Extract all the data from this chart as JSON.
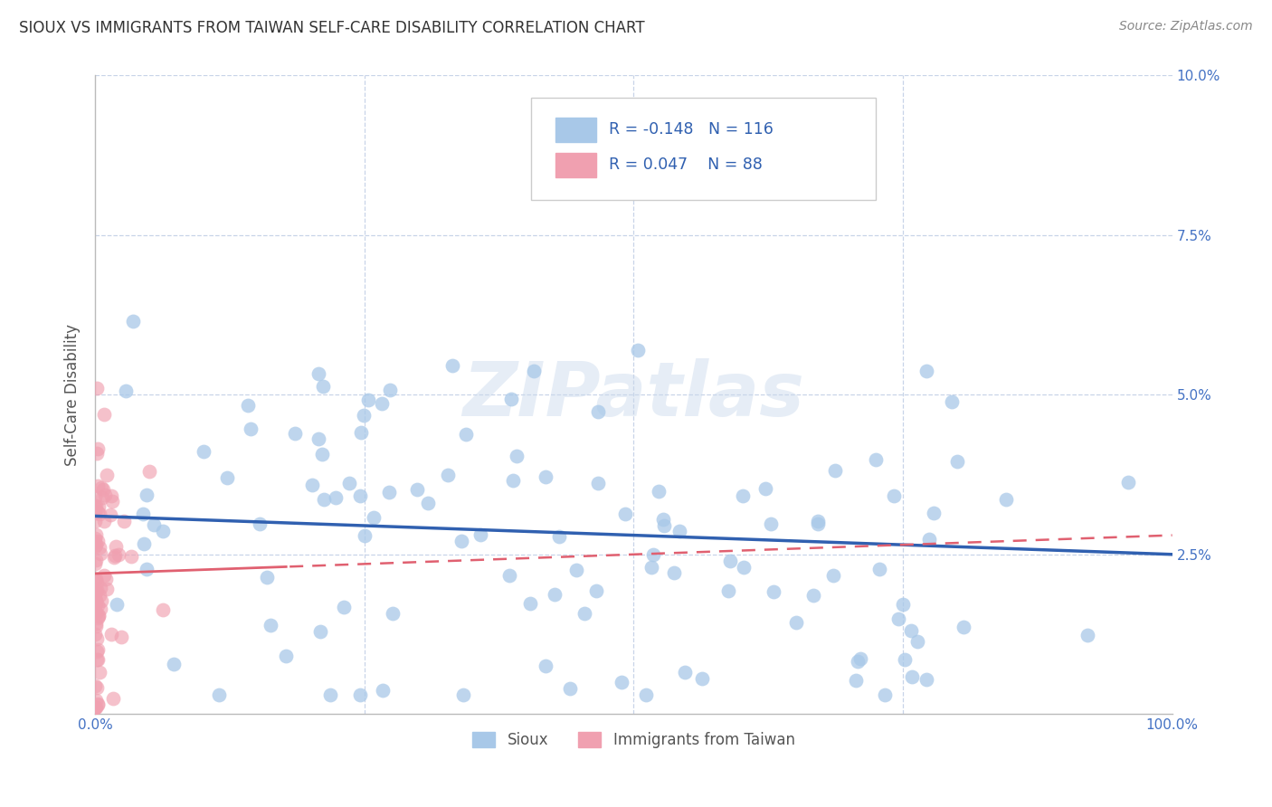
{
  "title": "SIOUX VS IMMIGRANTS FROM TAIWAN SELF-CARE DISABILITY CORRELATION CHART",
  "source": "Source: ZipAtlas.com",
  "ylabel": "Self-Care Disability",
  "sioux_color": "#a8c8e8",
  "taiwan_color": "#f0a0b0",
  "sioux_line_color": "#3060b0",
  "taiwan_line_color": "#e06070",
  "watermark": "ZIPatlas",
  "background_color": "#ffffff",
  "grid_color": "#c8d4e8",
  "axis_label_color": "#4472c4",
  "title_color": "#333333",
  "xlim": [
    0,
    1
  ],
  "ylim": [
    0,
    0.1
  ],
  "yticks": [
    0,
    0.025,
    0.05,
    0.075,
    0.1
  ],
  "ytick_labels_right": [
    "",
    "2.5%",
    "5.0%",
    "7.5%",
    "10.0%"
  ],
  "xticks": [
    0,
    0.25,
    0.5,
    0.75,
    1.0
  ],
  "xtick_labels": [
    "0.0%",
    "",
    "",
    "",
    "100.0%"
  ],
  "sioux_R": -0.148,
  "sioux_N": 116,
  "taiwan_R": 0.047,
  "taiwan_N": 88,
  "sioux_line_start": 0.031,
  "sioux_line_end": 0.025,
  "taiwan_line_start": 0.022,
  "taiwan_line_end": 0.028
}
